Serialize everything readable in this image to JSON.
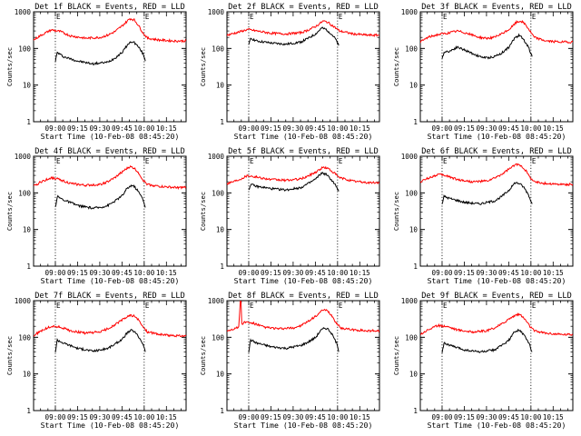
{
  "shared": {
    "xlabel": "Start Time (10-Feb-08 08:45:20)",
    "ylabel": "Counts/sec",
    "x_tick_labels": [
      "09:00",
      "09:15",
      "09:30",
      "09:45",
      "10:00",
      "10:15"
    ],
    "y_tick_labels": [
      "1",
      "10",
      "100",
      "1000"
    ],
    "marker_label": "E",
    "colors": {
      "events": "#000000",
      "lld": "#ff0000",
      "axes": "#000000",
      "background": "#ffffff"
    }
  },
  "chart_data": [
    {
      "type": "line",
      "title": "Det 1f BLACK = Events, RED = LLD",
      "x_range_min": [
        0,
        103
      ],
      "y_range_log10": [
        0,
        3
      ],
      "y_scale": "log",
      "marker_lines_min": [
        14.7,
        74.7
      ],
      "grid": false,
      "series": [
        {
          "name": "Events",
          "color": "#000000",
          "x": [
            14.7,
            16,
            20,
            30,
            40,
            45,
            50,
            55,
            60,
            63,
            66,
            68,
            70,
            72,
            74,
            75.5
          ],
          "y": [
            45,
            78,
            60,
            45,
            38,
            40,
            42,
            55,
            80,
            120,
            155,
            145,
            120,
            95,
            70,
            45
          ]
        },
        {
          "name": "LLD",
          "color": "#ff0000",
          "x": [
            0,
            5,
            12,
            18,
            25,
            35,
            45,
            50,
            55,
            60,
            65,
            68,
            71,
            74,
            77,
            85,
            95,
            103
          ],
          "y": [
            170,
            230,
            320,
            290,
            220,
            190,
            200,
            230,
            290,
            420,
            650,
            600,
            420,
            260,
            190,
            170,
            160,
            160
          ]
        }
      ]
    },
    {
      "type": "line",
      "title": "Det 2f BLACK = Events, RED = LLD",
      "x_range_min": [
        0,
        103
      ],
      "y_range_log10": [
        0,
        3
      ],
      "y_scale": "log",
      "marker_lines_min": [
        14.7,
        74.7
      ],
      "grid": false,
      "series": [
        {
          "name": "Events",
          "color": "#000000",
          "x": [
            14.7,
            16,
            20,
            30,
            40,
            50,
            55,
            60,
            64,
            67,
            70,
            73,
            75.5
          ],
          "y": [
            120,
            190,
            160,
            140,
            130,
            150,
            190,
            250,
            360,
            330,
            260,
            190,
            120
          ]
        },
        {
          "name": "LLD",
          "color": "#ff0000",
          "x": [
            0,
            8,
            14,
            20,
            30,
            40,
            50,
            55,
            60,
            65,
            68,
            72,
            76,
            85,
            95,
            103
          ],
          "y": [
            230,
            280,
            330,
            300,
            260,
            250,
            270,
            320,
            400,
            560,
            520,
            400,
            300,
            250,
            230,
            230
          ]
        }
      ]
    },
    {
      "type": "line",
      "title": "Det 3f BLACK = Events, RED = LLD",
      "x_range_min": [
        0,
        103
      ],
      "y_range_log10": [
        0,
        3
      ],
      "y_scale": "log",
      "marker_lines_min": [
        14.7,
        74.7
      ],
      "grid": false,
      "series": [
        {
          "name": "Events",
          "color": "#000000",
          "x": [
            14.7,
            16,
            20,
            25,
            30,
            40,
            45,
            50,
            55,
            60,
            64,
            67,
            70,
            73,
            75.5
          ],
          "y": [
            50,
            80,
            85,
            110,
            90,
            60,
            55,
            60,
            75,
            110,
            200,
            230,
            170,
            110,
            60
          ]
        },
        {
          "name": "LLD",
          "color": "#ff0000",
          "x": [
            0,
            5,
            12,
            18,
            25,
            30,
            40,
            45,
            50,
            55,
            60,
            65,
            68,
            71,
            74,
            77,
            85,
            95,
            103
          ],
          "y": [
            150,
            200,
            240,
            260,
            300,
            270,
            200,
            190,
            200,
            250,
            330,
            520,
            560,
            450,
            300,
            200,
            160,
            150,
            150
          ]
        }
      ]
    },
    {
      "type": "line",
      "title": "Det 4f BLACK = Events, RED = LLD",
      "x_range_min": [
        0,
        103
      ],
      "y_range_log10": [
        0,
        3
      ],
      "y_scale": "log",
      "marker_lines_min": [
        14.7,
        74.7
      ],
      "grid": false,
      "series": [
        {
          "name": "Events",
          "color": "#000000",
          "x": [
            14.7,
            16,
            20,
            30,
            40,
            45,
            50,
            55,
            60,
            63,
            66,
            68,
            70,
            72,
            74,
            75.5
          ],
          "y": [
            40,
            80,
            65,
            45,
            38,
            40,
            45,
            60,
            85,
            130,
            160,
            150,
            120,
            90,
            65,
            40
          ]
        },
        {
          "name": "LLD",
          "color": "#ff0000",
          "x": [
            0,
            5,
            12,
            18,
            25,
            35,
            45,
            50,
            55,
            60,
            65,
            68,
            71,
            74,
            77,
            85,
            95,
            103
          ],
          "y": [
            150,
            200,
            260,
            230,
            180,
            160,
            170,
            200,
            260,
            380,
            520,
            470,
            350,
            220,
            170,
            150,
            140,
            140
          ]
        }
      ]
    },
    {
      "type": "line",
      "title": "Det 5f BLACK = Events, RED = LLD",
      "x_range_min": [
        0,
        103
      ],
      "y_range_log10": [
        0,
        3
      ],
      "y_scale": "log",
      "marker_lines_min": [
        14.7,
        74.7
      ],
      "grid": false,
      "series": [
        {
          "name": "Events",
          "color": "#000000",
          "x": [
            14.7,
            16,
            20,
            30,
            40,
            50,
            55,
            60,
            64,
            67,
            70,
            73,
            75.5
          ],
          "y": [
            120,
            170,
            150,
            130,
            120,
            140,
            180,
            240,
            350,
            320,
            240,
            170,
            110
          ]
        },
        {
          "name": "LLD",
          "color": "#ff0000",
          "x": [
            0,
            8,
            14,
            20,
            30,
            40,
            50,
            55,
            60,
            65,
            68,
            72,
            76,
            85,
            95,
            103
          ],
          "y": [
            180,
            230,
            300,
            270,
            230,
            220,
            240,
            290,
            370,
            500,
            470,
            360,
            260,
            210,
            190,
            190
          ]
        }
      ]
    },
    {
      "type": "line",
      "title": "Det 6f BLACK = Events, RED = LLD",
      "x_range_min": [
        0,
        103
      ],
      "y_range_log10": [
        0,
        3
      ],
      "y_scale": "log",
      "marker_lines_min": [
        14.7,
        74.7
      ],
      "grid": false,
      "series": [
        {
          "name": "Events",
          "color": "#000000",
          "x": [
            14.7,
            16,
            20,
            30,
            40,
            50,
            55,
            60,
            64,
            67,
            70,
            73,
            75.5
          ],
          "y": [
            50,
            80,
            70,
            55,
            50,
            60,
            80,
            120,
            190,
            180,
            140,
            90,
            50
          ]
        },
        {
          "name": "LLD",
          "color": "#ff0000",
          "x": [
            0,
            5,
            12,
            18,
            25,
            35,
            45,
            50,
            55,
            60,
            65,
            68,
            71,
            74,
            77,
            85,
            95,
            103
          ],
          "y": [
            200,
            250,
            320,
            290,
            230,
            200,
            210,
            250,
            320,
            450,
            600,
            560,
            420,
            270,
            200,
            180,
            170,
            170
          ]
        }
      ]
    },
    {
      "type": "line",
      "title": "Det 7f BLACK = Events, RED = LLD",
      "x_range_min": [
        0,
        103
      ],
      "y_range_log10": [
        0,
        3
      ],
      "y_scale": "log",
      "marker_lines_min": [
        14.7,
        74.7
      ],
      "grid": false,
      "series": [
        {
          "name": "Events",
          "color": "#000000",
          "x": [
            14.7,
            16,
            20,
            30,
            40,
            45,
            50,
            55,
            60,
            63,
            66,
            68,
            70,
            72,
            74,
            75.5
          ],
          "y": [
            40,
            85,
            70,
            50,
            42,
            45,
            50,
            65,
            90,
            130,
            155,
            145,
            115,
            90,
            65,
            40
          ]
        },
        {
          "name": "LLD",
          "color": "#ff0000",
          "x": [
            0,
            5,
            12,
            18,
            25,
            35,
            45,
            50,
            55,
            60,
            65,
            68,
            71,
            74,
            77,
            85,
            95,
            103
          ],
          "y": [
            110,
            150,
            200,
            190,
            150,
            130,
            140,
            170,
            220,
            300,
            400,
            380,
            290,
            190,
            140,
            120,
            110,
            110
          ]
        }
      ]
    },
    {
      "type": "line",
      "title": "Det 8f BLACK = Events, RED = LLD",
      "x_range_min": [
        0,
        103
      ],
      "y_range_log10": [
        0,
        3
      ],
      "y_scale": "log",
      "marker_lines_min": [
        14.7,
        74.7
      ],
      "grid": false,
      "series": [
        {
          "name": "Events",
          "color": "#000000",
          "x": [
            14.7,
            16,
            20,
            30,
            40,
            45,
            50,
            55,
            60,
            63,
            66,
            68,
            70,
            72,
            74,
            75.5
          ],
          "y": [
            40,
            85,
            70,
            55,
            50,
            55,
            60,
            75,
            100,
            150,
            180,
            170,
            140,
            100,
            70,
            40
          ]
        },
        {
          "name": "LLD",
          "color": "#ff0000",
          "x": [
            0,
            8,
            9,
            9.5,
            10,
            12,
            18,
            25,
            35,
            45,
            50,
            55,
            60,
            65,
            68,
            71,
            74,
            77,
            85,
            95,
            103
          ],
          "y": [
            150,
            190,
            1000,
            1000,
            230,
            260,
            240,
            190,
            170,
            180,
            210,
            270,
            380,
            560,
            520,
            380,
            240,
            180,
            160,
            150,
            150
          ]
        }
      ]
    },
    {
      "type": "line",
      "title": "Det 9f BLACK = Events, RED = LLD",
      "x_range_min": [
        0,
        103
      ],
      "y_range_log10": [
        0,
        3
      ],
      "y_scale": "log",
      "marker_lines_min": [
        14.7,
        74.7
      ],
      "grid": false,
      "series": [
        {
          "name": "Events",
          "color": "#000000",
          "x": [
            14.7,
            16,
            20,
            30,
            40,
            45,
            50,
            55,
            60,
            63,
            66,
            68,
            70,
            72,
            74,
            75.5
          ],
          "y": [
            40,
            70,
            60,
            45,
            40,
            42,
            45,
            60,
            85,
            130,
            155,
            145,
            115,
            85,
            60,
            40
          ]
        },
        {
          "name": "LLD",
          "color": "#ff0000",
          "x": [
            0,
            5,
            12,
            18,
            25,
            35,
            45,
            50,
            55,
            60,
            65,
            68,
            71,
            74,
            77,
            85,
            95,
            103
          ],
          "y": [
            120,
            160,
            210,
            200,
            160,
            140,
            150,
            180,
            230,
            320,
            420,
            400,
            300,
            200,
            150,
            130,
            120,
            120
          ]
        }
      ]
    }
  ]
}
